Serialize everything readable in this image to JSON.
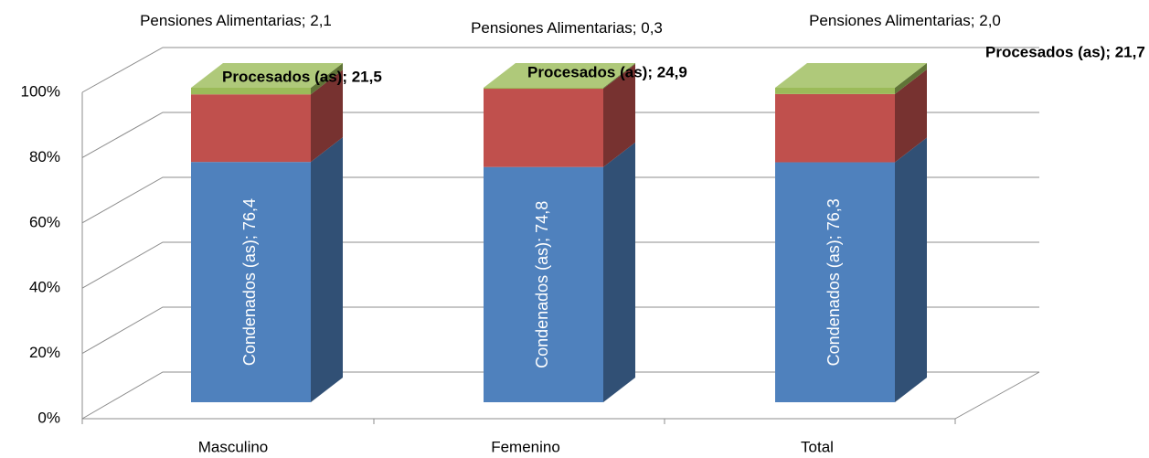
{
  "chart_data": {
    "type": "bar3d_stacked",
    "categories": [
      "Masculino",
      "Femenino",
      "Total"
    ],
    "series": [
      {
        "name": "Condenados (as)",
        "color": "#4f81bd",
        "values": [
          76.4,
          74.8,
          76.3
        ],
        "value_labels": [
          "Condenados (as); 76,4",
          "Condenados (as); 74,8",
          "Condenados (as); 76,3"
        ]
      },
      {
        "name": "Procesados (as)",
        "color": "#c0504d",
        "values": [
          21.5,
          24.9,
          21.7
        ],
        "value_labels": [
          "Procesados (as); 21,5",
          "Procesados (as); 24,9",
          "Procesados (as); 21,7"
        ]
      },
      {
        "name": "Pensiones Alimentarias",
        "color": "#9bbb59",
        "values": [
          2.1,
          0.3,
          2.0
        ],
        "value_labels": [
          "Pensiones Alimentarias; 2,1",
          "Pensiones Alimentarias; 0,3",
          "Pensiones Alimentarias; 2,0"
        ]
      }
    ],
    "ylim": [
      0,
      100
    ],
    "yticks": [
      {
        "value": 0,
        "label": "0%"
      },
      {
        "value": 20,
        "label": "20%"
      },
      {
        "value": 40,
        "label": "40%"
      },
      {
        "value": 60,
        "label": "60%"
      },
      {
        "value": 80,
        "label": "80%"
      },
      {
        "value": 100,
        "label": "100%"
      }
    ],
    "grid": true
  }
}
